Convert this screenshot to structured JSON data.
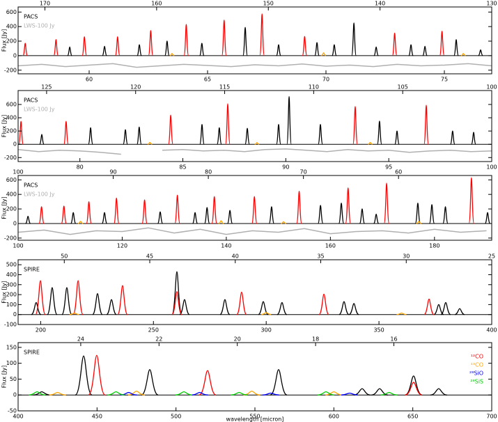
{
  "chart_data": [
    {
      "type": "spectrum",
      "label": "PACS",
      "sublabel": "LWS-100 Jy",
      "ylabel": "Flux [Jy]",
      "xlim": [
        57,
        77
      ],
      "xticks": [
        60,
        65,
        70,
        75
      ],
      "x2lim": [
        172.4,
        130
      ],
      "x2ticks": [
        170,
        160,
        150,
        140,
        130
      ],
      "ylim": [
        -250,
        670
      ],
      "yticks": [
        -200,
        0,
        200,
        400,
        600
      ],
      "series": [
        {
          "color": "#000000",
          "x": [
            59.18,
            60.65,
            62.12,
            63.29,
            64.76,
            66.59,
            68.0,
            69.62,
            70.35,
            71.18,
            72.12,
            73.59,
            74.18,
            75.5,
            76.53
          ],
          "values": [
            120,
            130,
            150,
            200,
            170,
            390,
            150,
            180,
            150,
            450,
            120,
            150,
            130,
            220,
            80
          ]
        },
        {
          "color": "#ff0000",
          "x": [
            57.3,
            58.6,
            59.8,
            61.2,
            62.6,
            64.1,
            65.7,
            67.3,
            69.1,
            72.9,
            74.9
          ],
          "values": [
            170,
            220,
            260,
            260,
            345,
            430,
            490,
            575,
            265,
            310,
            335
          ]
        },
        {
          "color": "#ffa500",
          "x": [
            63.5,
            69.9,
            75.8
          ],
          "values": [
            30,
            40,
            30
          ]
        }
      ],
      "reference": {
        "color": "#b0b0b0",
        "x": [
          57,
          58,
          59,
          60,
          61,
          62,
          63,
          64,
          65,
          66,
          67,
          68,
          69,
          70,
          71,
          72,
          73,
          74,
          75,
          76,
          77
        ],
        "values": [
          -140,
          -120,
          -150,
          -130,
          -110,
          -160,
          -140,
          -120,
          -135,
          -150,
          -125,
          -140,
          -115,
          -145,
          -130,
          -150,
          -120,
          -140,
          -130,
          -110,
          -140
        ]
      }
    },
    {
      "type": "spectrum",
      "label": "PACS",
      "sublabel": "LWS-100 Jy",
      "ylabel": "Flux [Jy]",
      "xlim": [
        77,
        100
      ],
      "xticks": [
        80,
        85,
        90,
        95,
        100
      ],
      "x2lim": [
        126.6,
        100
      ],
      "x2ticks": [
        125,
        120,
        115,
        110,
        105,
        100
      ],
      "ylim": [
        -260,
        810
      ],
      "yticks": [
        -200,
        0,
        200,
        400,
        600
      ],
      "series": [
        {
          "color": "#000000",
          "x": [
            78.15,
            80.52,
            82.21,
            82.88,
            85.93,
            86.77,
            88.13,
            89.65,
            90.16,
            91.68,
            94.55,
            95.4,
            98.1,
            99.12
          ],
          "values": [
            150,
            250,
            220,
            260,
            300,
            250,
            240,
            300,
            720,
            300,
            350,
            200,
            200,
            180
          ]
        },
        {
          "color": "#ff0000",
          "x": [
            77.14,
            79.33,
            84.41,
            87.18,
            93.37,
            96.82
          ],
          "values": [
            345,
            345,
            440,
            610,
            570,
            590
          ]
        },
        {
          "color": "#ffa500",
          "x": [
            83.4,
            88.6,
            94.1
          ],
          "values": [
            30,
            25,
            30
          ]
        }
      ],
      "reference": {
        "color": "#b0b0b0",
        "x": [
          77,
          78,
          79,
          80,
          81,
          82,
          83,
          84,
          85,
          86,
          87,
          88,
          89,
          90,
          91,
          92,
          93,
          94,
          95,
          96,
          97,
          98,
          99,
          100
        ],
        "values": [
          -80,
          -110,
          -90,
          -100,
          -120,
          -150,
          null,
          -90,
          -80,
          -100,
          -90,
          -110,
          -80,
          -70,
          -90,
          -110,
          -80,
          -100,
          -90,
          -120,
          -100,
          -90,
          -110,
          -100
        ]
      }
    },
    {
      "type": "spectrum",
      "label": "PACS",
      "sublabel": "LWS-100 Jy",
      "ylabel": "Flux [Jy]",
      "xlim": [
        100,
        191
      ],
      "xticks": [
        100,
        120,
        140,
        160,
        180
      ],
      "x2lim": [
        100,
        50.2
      ],
      "x2ticks": [
        100,
        90,
        80,
        70,
        60
      ],
      "ylim": [
        -230,
        660
      ],
      "yticks": [
        -200,
        0,
        200,
        400,
        600
      ],
      "series": [
        {
          "color": "#000000",
          "x": [
            101.9,
            110.6,
            116.6,
            127.3,
            134.0,
            136.3,
            140.7,
            148.7,
            158.1,
            162.1,
            166.1,
            168.8,
            176.8,
            179.5,
            182.1,
            190.2
          ],
          "values": [
            100,
            150,
            150,
            160,
            150,
            220,
            180,
            230,
            250,
            280,
            200,
            130,
            280,
            260,
            230,
            150
          ]
        },
        {
          "color": "#ff0000",
          "x": [
            104.5,
            108.8,
            113.6,
            118.9,
            124.3,
            130.6,
            137.7,
            145.4,
            154.0,
            163.4,
            170.8,
            187.1
          ],
          "values": [
            230,
            240,
            300,
            350,
            325,
            390,
            370,
            370,
            445,
            490,
            555,
            630
          ]
        },
        {
          "color": "#ffa500",
          "x": [
            112,
            139,
            151,
            177
          ],
          "values": [
            30,
            40,
            25,
            30
          ]
        }
      ],
      "reference": {
        "color": "#b0b0b0",
        "x": [
          100,
          105,
          110,
          115,
          120,
          125,
          130,
          135,
          140,
          145,
          150,
          155,
          160,
          165,
          170,
          175,
          180,
          185,
          190
        ],
        "values": [
          -120,
          -90,
          -150,
          -100,
          -110,
          -60,
          -130,
          -80,
          -150,
          -100,
          -120,
          -70,
          -140,
          -110,
          -100,
          -130,
          -80,
          -120,
          -100
        ]
      }
    },
    {
      "type": "spectrum",
      "label": "SPIRE",
      "ylabel": "Flux [Jy]",
      "xlim": [
        190,
        400
      ],
      "xticks": [
        200,
        250,
        300,
        350,
        400
      ],
      "x2lim": [
        52.7,
        25
      ],
      "x2ticks": [
        50,
        45,
        40,
        35,
        30,
        25
      ],
      "ylim": [
        -100,
        550
      ],
      "yticks": [
        -100,
        0,
        100,
        200,
        300,
        400,
        500
      ],
      "series": [
        {
          "color": "#000000",
          "x": [
            198.0,
            205.1,
            211.6,
            225.2,
            231.4,
            260.4,
            263.8,
            281.7,
            298.7,
            307.0,
            334.5,
            338.9,
            376.5,
            379.6,
            385.8
          ],
          "values": [
            120,
            270,
            270,
            210,
            150,
            430,
            150,
            150,
            130,
            120,
            130,
            110,
            100,
            120,
            60
          ]
        },
        {
          "color": "#ff0000",
          "x": [
            199.9,
            216.6,
            236.3,
            260.4,
            289.1,
            325.6,
            372.2
          ],
          "values": [
            340,
            340,
            290,
            230,
            225,
            205,
            155
          ]
        },
        {
          "color": "#ffa500",
          "x": [
            215,
            300,
            360
          ],
          "values": [
            15,
            20,
            15
          ]
        }
      ]
    },
    {
      "type": "spectrum",
      "label": "SPIRE",
      "ylabel": "Flux [Jy]",
      "xlabel": "wavelength [micron]",
      "legend": "upper right",
      "xlim": [
        400,
        700
      ],
      "xticks": [
        400,
        450,
        500,
        550,
        600,
        650,
        700
      ],
      "x2lim": [
        25.6,
        13.5
      ],
      "x2ticks": [
        24,
        22,
        20,
        18,
        16
      ],
      "ylim": [
        -50,
        165
      ],
      "yticks": [
        -50,
        0,
        50,
        100,
        150
      ],
      "series": [
        {
          "color": "#000000",
          "x": [
            415,
            441.5,
            483.4,
            565.0,
            617.9,
            629,
            650.5,
            666.4
          ],
          "values": [
            10,
            123,
            80,
            80,
            20,
            20,
            60,
            20
          ]
        },
        {
          "name": "¹²CO",
          "color": "#ff0000",
          "x": [
            449.8,
            520.0,
            650.5
          ],
          "values": [
            125,
            77,
            40
          ]
        },
        {
          "name": "¹³CO",
          "color": "#ffa500",
          "x": [
            425,
            475,
            548,
            600
          ],
          "values": [
            8,
            12,
            12,
            10
          ]
        },
        {
          "name": "²⁸SiO",
          "color": "#0000ff",
          "x": [
            470,
            515,
            560,
            610
          ],
          "values": [
            8,
            8,
            6,
            6
          ]
        },
        {
          "name": "²⁸SiS",
          "color": "#00cc00",
          "x": [
            412,
            462,
            505,
            540,
            595,
            635
          ],
          "values": [
            10,
            10,
            10,
            8,
            10,
            8
          ]
        }
      ]
    }
  ]
}
